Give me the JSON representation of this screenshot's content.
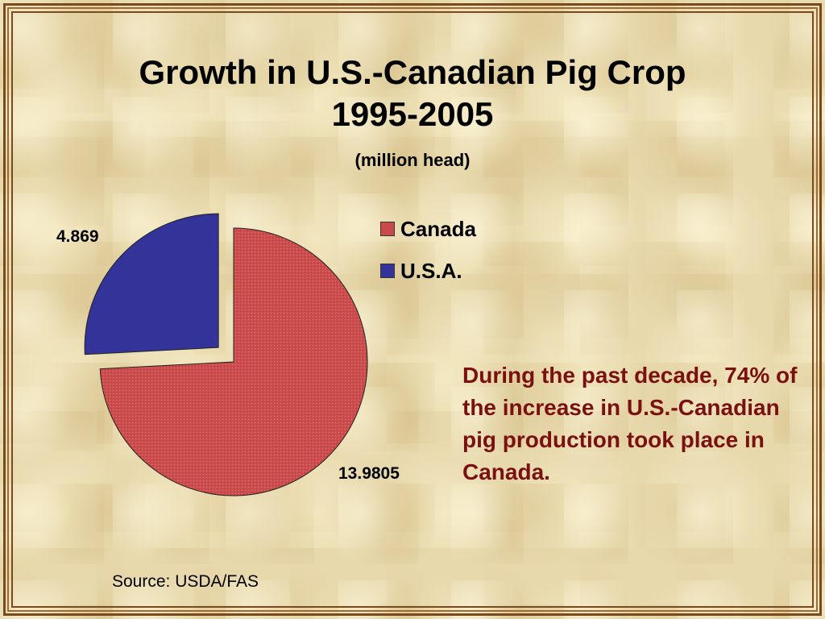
{
  "slide": {
    "title_line1": "Growth in U.S.-Canadian Pig Crop",
    "title_line2": "1995-2005",
    "subtitle": "(million head)",
    "note": "During the past decade, 74% of the increase in U.S.-Canadian pig production took place in Canada.",
    "source": "Source: USDA/FAS"
  },
  "chart_data": {
    "type": "pie",
    "title": "Growth in U.S.-Canadian Pig Crop 1995-2005",
    "subtitle": "(million head)",
    "legend_position": "right",
    "series": [
      {
        "name": "Canada",
        "value": 13.9805,
        "label": "13.9805",
        "color": "#c94a4a"
      },
      {
        "name": "U.S.A.",
        "value": 4.869,
        "label": "4.869",
        "color": "#333399"
      }
    ],
    "exploded": [
      "U.S.A."
    ]
  }
}
